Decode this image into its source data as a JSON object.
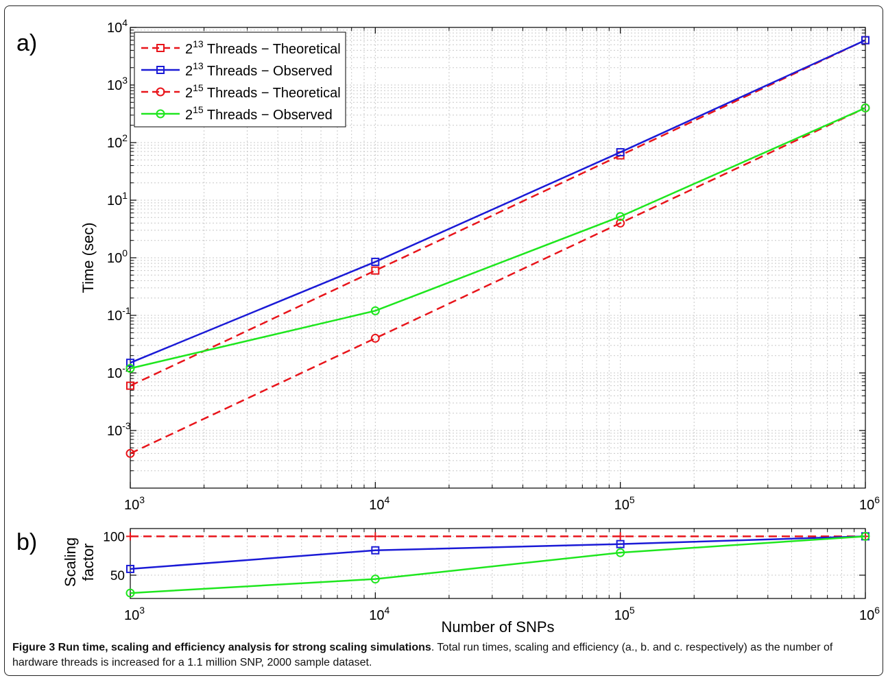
{
  "figure": {
    "caption_bold": "Figure 3 Run time, scaling and efficiency analysis for strong scaling simulations",
    "caption_rest": ". Total run times, scaling and efficiency (a., b. and c. respectively) as the number of hardware threads is increased for a 1.1 million SNP, 2000 sample dataset."
  },
  "panels": {
    "a_label": "a)",
    "b_label": "b)"
  },
  "colors": {
    "red": "#e8141a",
    "blue": "#1a1ad6",
    "green": "#1ee61e",
    "grid": "#c8c8c8",
    "axis": "#000000"
  },
  "chart_data": [
    {
      "type": "line",
      "panel": "a",
      "xscale": "log",
      "yscale": "log",
      "xlim": [
        1000,
        1000000
      ],
      "ylim": [
        0.0001,
        10000
      ],
      "grid": true,
      "legend_position": "top-left",
      "xlabel": "",
      "ylabel": "Time (sec)",
      "x_ticks": [
        {
          "value": 1000,
          "base": "10",
          "exp": "3"
        },
        {
          "value": 10000,
          "base": "10",
          "exp": "4"
        },
        {
          "value": 100000,
          "base": "10",
          "exp": "5"
        },
        {
          "value": 1000000,
          "base": "10",
          "exp": "6"
        }
      ],
      "y_ticks": [
        {
          "value": 0.001,
          "base": "10",
          "exp": "-3"
        },
        {
          "value": 0.01,
          "base": "10",
          "exp": "-2"
        },
        {
          "value": 0.1,
          "base": "10",
          "exp": "-1"
        },
        {
          "value": 1,
          "base": "10",
          "exp": "0"
        },
        {
          "value": 10,
          "base": "10",
          "exp": "1"
        },
        {
          "value": 100,
          "base": "10",
          "exp": "2"
        },
        {
          "value": 1000,
          "base": "10",
          "exp": "3"
        },
        {
          "value": 10000,
          "base": "10",
          "exp": "4"
        }
      ],
      "x": [
        1000,
        10000,
        100000,
        1000000
      ],
      "series": [
        {
          "name_base": "2",
          "name_exp": "13",
          "name_text": " Threads − Theoretical",
          "color": "red",
          "dash": true,
          "marker": "square",
          "values": [
            0.006,
            0.6,
            60,
            6000
          ]
        },
        {
          "name_base": "2",
          "name_exp": "13",
          "name_text": " Threads − Observed",
          "color": "blue",
          "dash": false,
          "marker": "square",
          "values": [
            0.015,
            0.85,
            68,
            6000
          ]
        },
        {
          "name_base": "2",
          "name_exp": "15",
          "name_text": " Threads − Theoretical",
          "color": "red",
          "dash": true,
          "marker": "circle",
          "values": [
            0.0004,
            0.04,
            4,
            400
          ]
        },
        {
          "name_base": "2",
          "name_exp": "15",
          "name_text": " Threads − Observed",
          "color": "green",
          "dash": false,
          "marker": "circle",
          "values": [
            0.012,
            0.12,
            5.2,
            400
          ]
        }
      ]
    },
    {
      "type": "line",
      "panel": "b",
      "xscale": "log",
      "yscale": "linear",
      "xlim": [
        1000,
        1000000
      ],
      "ylim": [
        20,
        110
      ],
      "grid": true,
      "xlabel": "Number of SNPs",
      "ylabel_lines": [
        "Scaling",
        "factor"
      ],
      "x_ticks": [
        {
          "value": 1000,
          "base": "10",
          "exp": "3"
        },
        {
          "value": 10000,
          "base": "10",
          "exp": "4"
        },
        {
          "value": 100000,
          "base": "10",
          "exp": "5"
        },
        {
          "value": 1000000,
          "base": "10",
          "exp": "6"
        }
      ],
      "y_ticks": [
        {
          "value": 50,
          "label": "50"
        },
        {
          "value": 100,
          "label": "100"
        }
      ],
      "x": [
        1000,
        10000,
        100000,
        1000000
      ],
      "series": [
        {
          "color": "red",
          "dash": true,
          "marker": "plus",
          "values": [
            100,
            100,
            100,
            100
          ]
        },
        {
          "color": "blue",
          "dash": false,
          "marker": "square",
          "values": [
            58,
            82,
            90,
            100
          ]
        },
        {
          "color": "green",
          "dash": false,
          "marker": "circle",
          "values": [
            27,
            45,
            79,
            100
          ]
        }
      ]
    }
  ]
}
